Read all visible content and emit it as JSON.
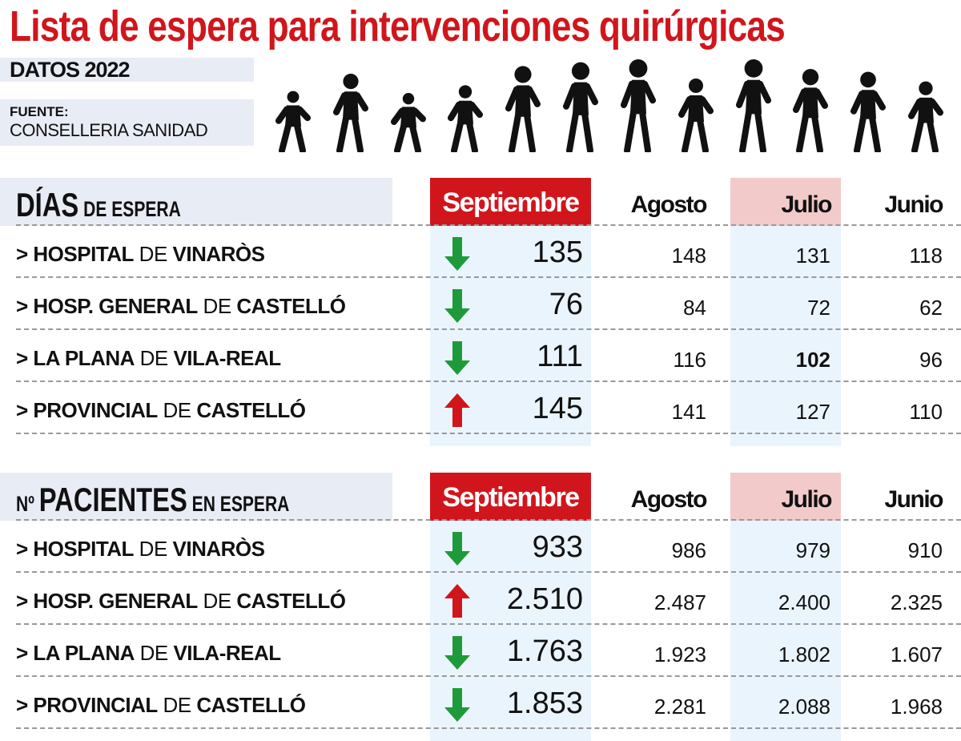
{
  "title": "Lista de espera para intervenciones quirúrgicas",
  "datos": "DATOS 2022",
  "fuente_label": "FUENTE:",
  "fuente": "CONSELLERIA SANIDAD",
  "colors": {
    "red": "#d0161c",
    "green": "#1f9a3a",
    "highlight": "#eaf4fd",
    "julio_header": "#f3caca",
    "header_box": "#e8ecf5"
  },
  "chart_data": {
    "type": "table",
    "months": [
      "Septiembre",
      "Agosto",
      "Julio",
      "Junio"
    ],
    "tables": [
      {
        "title_big": "DÍAS",
        "title_small": " DE ESPERA",
        "title_prefix": "",
        "rows": [
          {
            "label": [
              "> HOSPITAL",
              " DE ",
              "VINARÒS"
            ],
            "trend": "down",
            "values": [
              "135",
              "148",
              "131",
              "118"
            ]
          },
          {
            "label": [
              "> HOSP. GENERAL",
              " DE ",
              "CASTELLÓ"
            ],
            "trend": "down",
            "values": [
              "76",
              "84",
              "72",
              "62"
            ]
          },
          {
            "label": [
              "> LA PLANA",
              " DE ",
              "VILA-REAL"
            ],
            "trend": "down",
            "values": [
              "111",
              "116",
              "102",
              "96"
            ]
          },
          {
            "label": [
              "> PROVINCIAL",
              " DE ",
              "CASTELLÓ"
            ],
            "trend": "up",
            "values": [
              "145",
              "141",
              "127",
              "110"
            ]
          }
        ]
      },
      {
        "title_big": "PACIENTES",
        "title_small": " EN ESPERA",
        "title_prefix": "Nº ",
        "rows": [
          {
            "label": [
              "> HOSPITAL",
              " DE ",
              "VINARÒS"
            ],
            "trend": "down",
            "values": [
              "933",
              "986",
              "979",
              "910"
            ]
          },
          {
            "label": [
              "> HOSP. GENERAL",
              " DE ",
              "CASTELLÓ"
            ],
            "trend": "up",
            "values": [
              "2.510",
              "2.487",
              "2.400",
              "2.325"
            ]
          },
          {
            "label": [
              "> LA PLANA",
              " DE ",
              "VILA-REAL"
            ],
            "trend": "down",
            "values": [
              "1.763",
              "1.923",
              "1.802",
              "1.607"
            ]
          },
          {
            "label": [
              "> PROVINCIAL",
              " DE ",
              "CASTELLÓ"
            ],
            "trend": "down",
            "values": [
              "1.853",
              "2.281",
              "2.088",
              "1.968"
            ]
          }
        ]
      }
    ]
  }
}
